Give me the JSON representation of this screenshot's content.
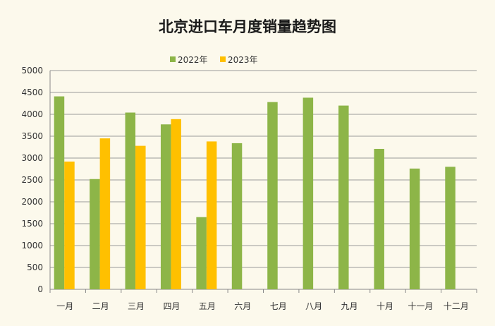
{
  "chart_data": {
    "type": "bar",
    "title": "北京进口车月度销量趋势图",
    "xlabel": "",
    "ylabel": "",
    "categories": [
      "一月",
      "二月",
      "三月",
      "四月",
      "五月",
      "六月",
      "七月",
      "八月",
      "九月",
      "十月",
      "十一月",
      "十二月"
    ],
    "series": [
      {
        "name": "2022年",
        "color": "#8db548",
        "values": [
          4410,
          2520,
          4040,
          3770,
          1650,
          3340,
          4280,
          4380,
          4200,
          3210,
          2760,
          2800
        ]
      },
      {
        "name": "2023年",
        "color": "#ffc000",
        "values": [
          2920,
          3450,
          3280,
          3890,
          3380,
          null,
          null,
          null,
          null,
          null,
          null,
          null
        ]
      }
    ],
    "ylim": [
      0,
      5000
    ],
    "yticks": [
      0,
      500,
      1000,
      1500,
      2000,
      2500,
      3000,
      3500,
      4000,
      4500,
      5000
    ],
    "grid": true,
    "legend_position": "top"
  }
}
